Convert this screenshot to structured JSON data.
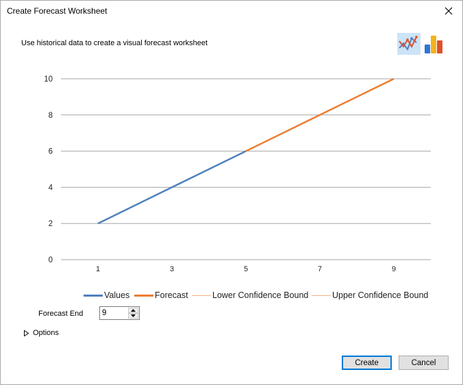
{
  "window": {
    "title": "Create Forecast Worksheet",
    "close_glyph": "✕"
  },
  "description": "Use historical data to create a visual forecast worksheet",
  "chart_type_buttons": [
    {
      "name": "line-chart-icon",
      "selected": true
    },
    {
      "name": "column-chart-icon",
      "selected": false
    }
  ],
  "chart_data": {
    "type": "line",
    "xlim": [
      0,
      10
    ],
    "ylim": [
      0,
      10
    ],
    "x_ticks": [
      "1",
      "3",
      "5",
      "7",
      "9"
    ],
    "y_ticks": [
      "0",
      "2",
      "4",
      "6",
      "8",
      "10"
    ],
    "grid": true,
    "legend_position": "bottom",
    "series": [
      {
        "name": "Values",
        "color": "#4f81bd",
        "x": [
          1,
          3,
          5
        ],
        "y": [
          2,
          4,
          6
        ]
      },
      {
        "name": "Forecast",
        "color": "#ed7d31",
        "x": [
          5,
          7,
          9
        ],
        "y": [
          6,
          8,
          10
        ]
      },
      {
        "name": "Lower Confidence Bound",
        "color": "#f4b183",
        "x": [],
        "y": []
      },
      {
        "name": "Upper Confidence Bound",
        "color": "#f4b183",
        "x": [],
        "y": []
      }
    ]
  },
  "forecast_end": {
    "label": "Forecast End",
    "value": "9"
  },
  "options": {
    "label": "Options",
    "expanded": false
  },
  "buttons": {
    "create": "Create",
    "cancel": "Cancel"
  }
}
